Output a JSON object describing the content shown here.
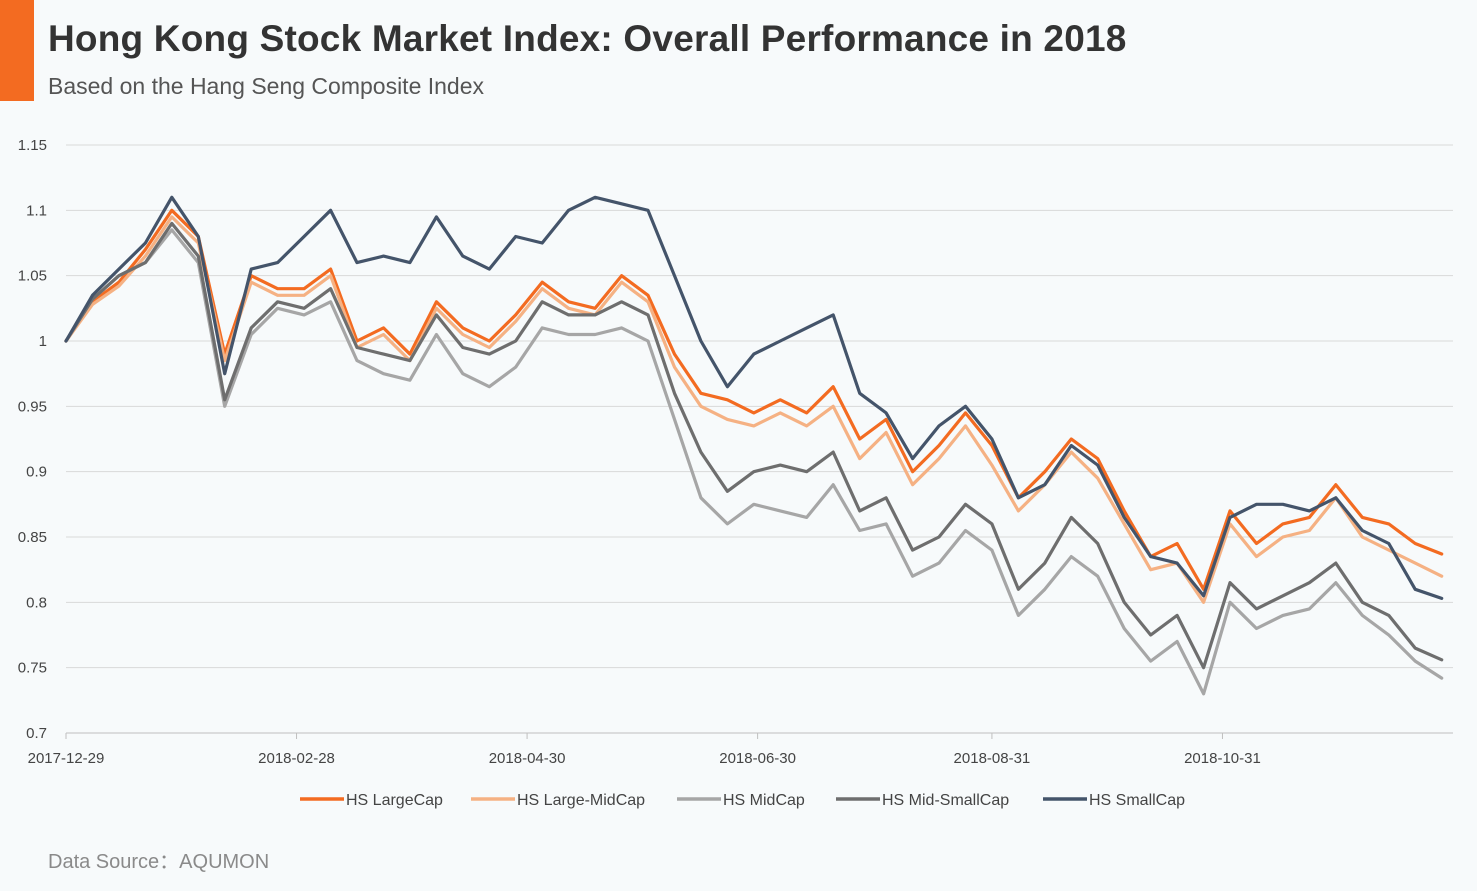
{
  "header": {
    "title": "Hong Kong Stock Market Index: Overall Performance in 2018",
    "subtitle": "Based on the Hang Seng Composite Index"
  },
  "footer": {
    "source": "Data Source：AQUMON"
  },
  "colors": {
    "accent": "#f36b21"
  },
  "chart_data": {
    "type": "line",
    "title": "Hong Kong Stock Market Index: Overall Performance in 2018",
    "subtitle": "Based on the Hang Seng Composite Index",
    "xlabel": "",
    "ylabel": "",
    "xlim": [
      "2017-12-29",
      "2018-12-31"
    ],
    "ylim": [
      0.7,
      1.15
    ],
    "y_ticks": [
      0.7,
      0.75,
      0.8,
      0.85,
      0.9,
      0.95,
      1,
      1.05,
      1.1,
      1.15
    ],
    "y_tick_labels": [
      "0.7",
      "0.75",
      "0.8",
      "0.85",
      "0.9",
      "0.95",
      "1",
      "1.05",
      "1.1",
      "1.15"
    ],
    "x_tick_labels": [
      "2017-12-29",
      "2018-02-28",
      "2018-04-30",
      "2018-06-30",
      "2018-08-31",
      "2018-10-31"
    ],
    "grid": "horizontal",
    "legend_position": "bottom",
    "x": [
      "2017-12-29",
      "2018-01-05",
      "2018-01-12",
      "2018-01-19",
      "2018-01-26",
      "2018-02-02",
      "2018-02-09",
      "2018-02-16",
      "2018-02-23",
      "2018-03-02",
      "2018-03-09",
      "2018-03-16",
      "2018-03-23",
      "2018-03-30",
      "2018-04-06",
      "2018-04-13",
      "2018-04-20",
      "2018-04-27",
      "2018-05-04",
      "2018-05-11",
      "2018-05-18",
      "2018-05-25",
      "2018-06-01",
      "2018-06-08",
      "2018-06-15",
      "2018-06-22",
      "2018-06-29",
      "2018-07-06",
      "2018-07-13",
      "2018-07-20",
      "2018-07-27",
      "2018-08-03",
      "2018-08-10",
      "2018-08-17",
      "2018-08-24",
      "2018-08-31",
      "2018-09-07",
      "2018-09-14",
      "2018-09-21",
      "2018-09-28",
      "2018-10-05",
      "2018-10-12",
      "2018-10-19",
      "2018-10-26",
      "2018-11-02",
      "2018-11-09",
      "2018-11-16",
      "2018-11-23",
      "2018-11-30",
      "2018-12-07",
      "2018-12-14",
      "2018-12-21",
      "2018-12-28"
    ],
    "series": [
      {
        "name": "HS LargeCap",
        "color": "#f36b21",
        "values": [
          1.0,
          1.03,
          1.045,
          1.07,
          1.1,
          1.08,
          0.99,
          1.05,
          1.04,
          1.04,
          1.055,
          1.0,
          1.01,
          0.99,
          1.03,
          1.01,
          1.0,
          1.02,
          1.045,
          1.03,
          1.025,
          1.05,
          1.035,
          0.99,
          0.96,
          0.955,
          0.945,
          0.955,
          0.945,
          0.965,
          0.925,
          0.94,
          0.9,
          0.92,
          0.945,
          0.92,
          0.88,
          0.9,
          0.925,
          0.91,
          0.87,
          0.835,
          0.845,
          0.81,
          0.87,
          0.845,
          0.86,
          0.865,
          0.89,
          0.865,
          0.86,
          0.845,
          0.837
        ]
      },
      {
        "name": "HS Large-MidCap",
        "color": "#f5b183",
        "values": [
          1.0,
          1.028,
          1.042,
          1.065,
          1.095,
          1.075,
          0.985,
          1.045,
          1.035,
          1.035,
          1.05,
          0.995,
          1.005,
          0.985,
          1.025,
          1.005,
          0.995,
          1.015,
          1.04,
          1.025,
          1.02,
          1.045,
          1.03,
          0.98,
          0.95,
          0.94,
          0.935,
          0.945,
          0.935,
          0.95,
          0.91,
          0.93,
          0.89,
          0.91,
          0.935,
          0.905,
          0.87,
          0.89,
          0.915,
          0.895,
          0.86,
          0.825,
          0.83,
          0.8,
          0.86,
          0.835,
          0.85,
          0.855,
          0.88,
          0.85,
          0.84,
          0.83,
          0.82
        ]
      },
      {
        "name": "HS MidCap",
        "color": "#a6a6a6",
        "values": [
          1.0,
          1.032,
          1.05,
          1.06,
          1.085,
          1.06,
          0.95,
          1.005,
          1.025,
          1.02,
          1.03,
          0.985,
          0.975,
          0.97,
          1.005,
          0.975,
          0.965,
          0.98,
          1.01,
          1.005,
          1.005,
          1.01,
          1.0,
          0.94,
          0.88,
          0.86,
          0.875,
          0.87,
          0.865,
          0.89,
          0.855,
          0.86,
          0.82,
          0.83,
          0.855,
          0.84,
          0.79,
          0.81,
          0.835,
          0.82,
          0.78,
          0.755,
          0.77,
          0.73,
          0.8,
          0.78,
          0.79,
          0.795,
          0.815,
          0.79,
          0.775,
          0.755,
          0.742
        ]
      },
      {
        "name": "HS Mid-SmallCap",
        "color": "#6e6e6e",
        "values": [
          1.0,
          1.032,
          1.05,
          1.06,
          1.09,
          1.065,
          0.955,
          1.01,
          1.03,
          1.025,
          1.04,
          0.995,
          0.99,
          0.985,
          1.02,
          0.995,
          0.99,
          1.0,
          1.03,
          1.02,
          1.02,
          1.03,
          1.02,
          0.96,
          0.915,
          0.885,
          0.9,
          0.905,
          0.9,
          0.915,
          0.87,
          0.88,
          0.84,
          0.85,
          0.875,
          0.86,
          0.81,
          0.83,
          0.865,
          0.845,
          0.8,
          0.775,
          0.79,
          0.75,
          0.815,
          0.795,
          0.805,
          0.815,
          0.83,
          0.8,
          0.79,
          0.765,
          0.756
        ]
      },
      {
        "name": "HS SmallCap",
        "color": "#44546a",
        "values": [
          1.0,
          1.035,
          1.055,
          1.075,
          1.11,
          1.08,
          0.975,
          1.055,
          1.06,
          1.08,
          1.1,
          1.06,
          1.065,
          1.06,
          1.095,
          1.065,
          1.055,
          1.08,
          1.075,
          1.1,
          1.11,
          1.105,
          1.1,
          1.05,
          1.0,
          0.965,
          0.99,
          1.0,
          1.01,
          1.02,
          0.96,
          0.945,
          0.91,
          0.935,
          0.95,
          0.925,
          0.88,
          0.89,
          0.92,
          0.905,
          0.865,
          0.835,
          0.83,
          0.805,
          0.865,
          0.875,
          0.875,
          0.87,
          0.88,
          0.855,
          0.845,
          0.81,
          0.803
        ]
      }
    ]
  }
}
